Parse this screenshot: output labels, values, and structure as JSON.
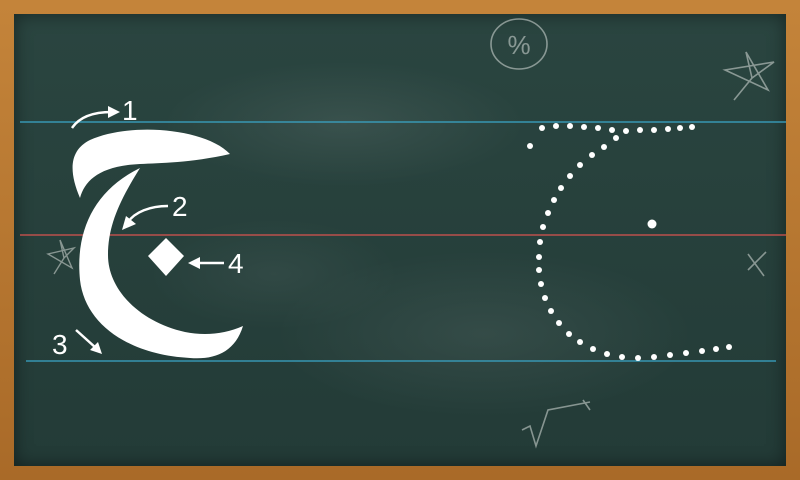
{
  "lesson": {
    "letter": "ح",
    "stroke_numbers": [
      "1",
      "2",
      "3",
      "4"
    ]
  },
  "doodles": {
    "percent_symbol": "%"
  },
  "colors": {
    "board": "#27413c",
    "frame": "#b8782f",
    "top_line": "#3aa7c9",
    "middle_line": "#d9534f",
    "bottom_line": "#3aa7c9",
    "chalk": "#ffffff"
  }
}
